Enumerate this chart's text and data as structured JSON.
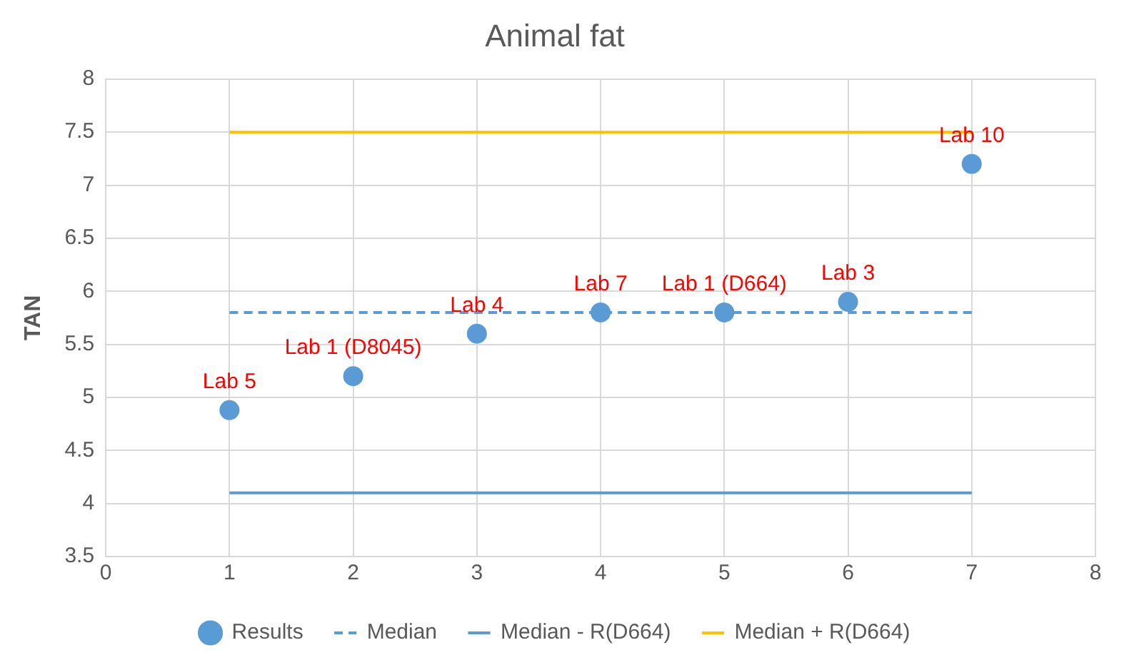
{
  "chart_data": {
    "type": "scatter",
    "title": "Animal fat",
    "ylabel": "TAN",
    "xlim": [
      0,
      8
    ],
    "xticks": [
      0,
      1,
      2,
      3,
      4,
      5,
      6,
      7,
      8
    ],
    "ylim": [
      3.5,
      8
    ],
    "yticks": [
      3.5,
      4,
      4.5,
      5,
      5.5,
      6,
      6.5,
      7,
      7.5,
      8
    ],
    "grid": true,
    "legend": "bottom",
    "marker": "circle",
    "series": [
      {
        "name": "Results",
        "type": "scatter",
        "color": "#5b9bd5",
        "x": [
          1,
          2,
          3,
          4,
          5,
          6,
          7
        ],
        "values": [
          4.88,
          5.2,
          5.6,
          5.8,
          5.8,
          5.9,
          7.2
        ]
      },
      {
        "name": "Median",
        "type": "line",
        "color": "#5b9bd5",
        "line_style": "dashed",
        "marker": "none",
        "x": [
          1,
          7
        ],
        "values": [
          5.8,
          5.8
        ]
      },
      {
        "name": "Median - R(D664)",
        "type": "line",
        "color": "#5b9bd5",
        "line_style": "solid",
        "marker": "none",
        "x": [
          1,
          7
        ],
        "values": [
          4.1,
          4.1
        ]
      },
      {
        "name": "Median + R(D664)",
        "type": "line",
        "color": "#ffc000",
        "line_style": "solid",
        "marker": "none",
        "x": [
          1,
          7
        ],
        "values": [
          7.5,
          7.5
        ]
      }
    ],
    "annotations": [
      {
        "text": "Lab 5",
        "x": 1,
        "y": 4.88
      },
      {
        "text": "Lab 1 (D8045)",
        "x": 2,
        "y": 5.2
      },
      {
        "text": "Lab 4",
        "x": 3,
        "y": 5.6
      },
      {
        "text": "Lab 7",
        "x": 4,
        "y": 5.8
      },
      {
        "text": "Lab 1 (D664)",
        "x": 5,
        "y": 5.8
      },
      {
        "text": "Lab 3",
        "x": 6,
        "y": 5.9
      },
      {
        "text": "Lab 10",
        "x": 7,
        "y": 7.2
      }
    ]
  }
}
